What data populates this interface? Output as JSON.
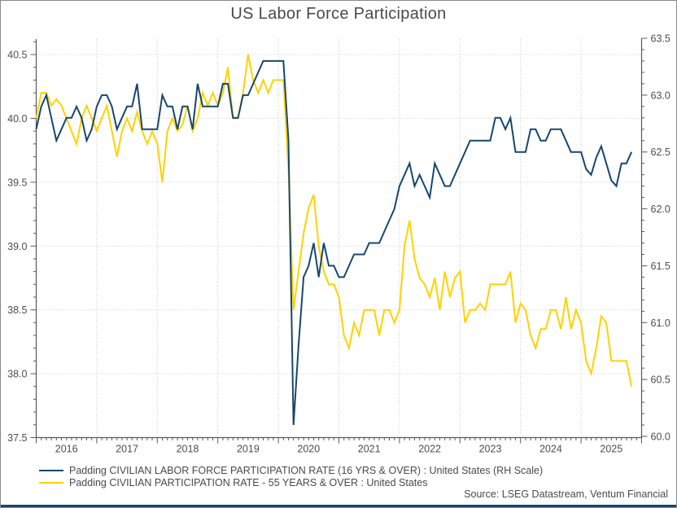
{
  "title": "US Labor Force Participation",
  "source": "Source: LSEG Datastream, Ventum Financial",
  "colors": {
    "series_16plus": "#17476e",
    "series_55plus": "#ffd200",
    "axis": "#595959",
    "tick_label": "#4d4d4d",
    "gridline": "#c9c9c9",
    "title": "#4a4a4a",
    "bottom_bar": "#17476e"
  },
  "legend": [
    {
      "label": "Padding CIVILIAN LABOR FORCE PARTICIPATION RATE (16 YRS & OVER) : United States (RH Scale)"
    },
    {
      "label": "Padding CIVILIAN PARTICIPATION RATE - 55 YEARS & OVER : United States"
    }
  ],
  "chart_data": {
    "type": "line",
    "title": "US Labor Force Participation",
    "frequency": "monthly",
    "x_start": "2016-01",
    "x_end": "2025-11",
    "x_axis": {
      "range_years": [
        2016,
        2026
      ],
      "year_labels": [
        "2016",
        "2017",
        "2018",
        "2019",
        "2020",
        "2021",
        "2022",
        "2023",
        "2024",
        "2025"
      ],
      "minor_tick": "month"
    },
    "left_axis": {
      "min": 37.5,
      "max": 40.5,
      "tick_step": 0.5,
      "minor_step": 0.1,
      "tick_labels": [
        "37.5",
        "38.0",
        "38.5",
        "39.0",
        "39.5",
        "40.0",
        "40.5"
      ]
    },
    "right_axis": {
      "min": 60.0,
      "max": 63.5,
      "tick_step": 0.5,
      "minor_step": 0.1,
      "tick_labels": [
        "60.0",
        "60.5",
        "61.0",
        "61.5",
        "62.0",
        "62.5",
        "63.0",
        "63.5"
      ]
    },
    "grid": {
      "horizontal": "dotted at left-axis 0.5 steps",
      "vertical": "dotted at year boundaries"
    },
    "legend_position": "bottom-left",
    "series": [
      {
        "name": "Padding CIVILIAN LABOR FORCE PARTICIPATION RATE (16 YRS & OVER) : United States (RH Scale)",
        "axis": "right",
        "color": "#17476e",
        "values": [
          62.7,
          62.9,
          63.0,
          62.8,
          62.6,
          62.7,
          62.8,
          62.8,
          62.9,
          62.8,
          62.6,
          62.7,
          62.9,
          63.0,
          63.0,
          62.9,
          62.7,
          62.8,
          62.9,
          62.9,
          63.1,
          62.7,
          62.7,
          62.7,
          62.7,
          63.0,
          62.9,
          62.9,
          62.7,
          62.9,
          62.9,
          62.7,
          63.1,
          62.9,
          62.9,
          62.9,
          62.9,
          63.1,
          63.1,
          62.8,
          62.8,
          63.0,
          63.0,
          63.1,
          63.2,
          63.3,
          63.3,
          63.3,
          63.3,
          63.3,
          62.6,
          60.1,
          60.8,
          61.4,
          61.5,
          61.7,
          61.4,
          61.7,
          61.5,
          61.5,
          61.4,
          61.4,
          61.5,
          61.6,
          61.6,
          61.6,
          61.7,
          61.7,
          61.7,
          61.8,
          61.9,
          62.0,
          62.2,
          62.3,
          62.4,
          62.2,
          62.3,
          62.2,
          62.1,
          62.4,
          62.3,
          62.2,
          62.2,
          62.3,
          62.4,
          62.5,
          62.6,
          62.6,
          62.6,
          62.6,
          62.6,
          62.8,
          62.8,
          62.7,
          62.8,
          62.5,
          62.5,
          62.5,
          62.7,
          62.7,
          62.6,
          62.6,
          62.7,
          62.7,
          62.7,
          62.6,
          62.5,
          62.5,
          62.5,
          62.35,
          62.3,
          62.45,
          62.55,
          62.4,
          62.25,
          62.2,
          62.4,
          62.4,
          62.5
        ]
      },
      {
        "name": "Padding CIVILIAN PARTICIPATION RATE - 55 YEARS & OVER : United States",
        "axis": "left",
        "color": "#ffd200",
        "values": [
          40.0,
          40.2,
          40.2,
          40.1,
          40.15,
          40.1,
          40.0,
          39.9,
          39.8,
          40.0,
          40.1,
          40.0,
          39.9,
          40.0,
          40.1,
          39.9,
          39.7,
          39.9,
          40.0,
          39.9,
          40.05,
          39.9,
          39.8,
          39.9,
          39.8,
          39.5,
          39.9,
          40.0,
          39.9,
          39.95,
          40.1,
          39.9,
          40.0,
          40.2,
          40.1,
          40.2,
          40.1,
          40.2,
          40.4,
          40.0,
          40.0,
          40.2,
          40.5,
          40.3,
          40.2,
          40.3,
          40.2,
          40.3,
          40.3,
          40.3,
          39.6,
          38.5,
          38.8,
          39.1,
          39.3,
          39.4,
          39.0,
          38.8,
          38.7,
          38.7,
          38.6,
          38.3,
          38.2,
          38.4,
          38.3,
          38.5,
          38.5,
          38.5,
          38.3,
          38.5,
          38.5,
          38.4,
          38.5,
          39.0,
          39.2,
          38.9,
          38.75,
          38.7,
          38.6,
          38.75,
          38.5,
          38.8,
          38.6,
          38.75,
          38.8,
          38.4,
          38.5,
          38.5,
          38.55,
          38.5,
          38.7,
          38.7,
          38.7,
          38.7,
          38.8,
          38.4,
          38.55,
          38.5,
          38.3,
          38.2,
          38.35,
          38.35,
          38.5,
          38.5,
          38.35,
          38.6,
          38.35,
          38.5,
          38.4,
          38.1,
          38.0,
          38.2,
          38.45,
          38.4,
          38.1,
          38.1,
          38.1,
          38.1,
          37.9
        ]
      }
    ]
  }
}
